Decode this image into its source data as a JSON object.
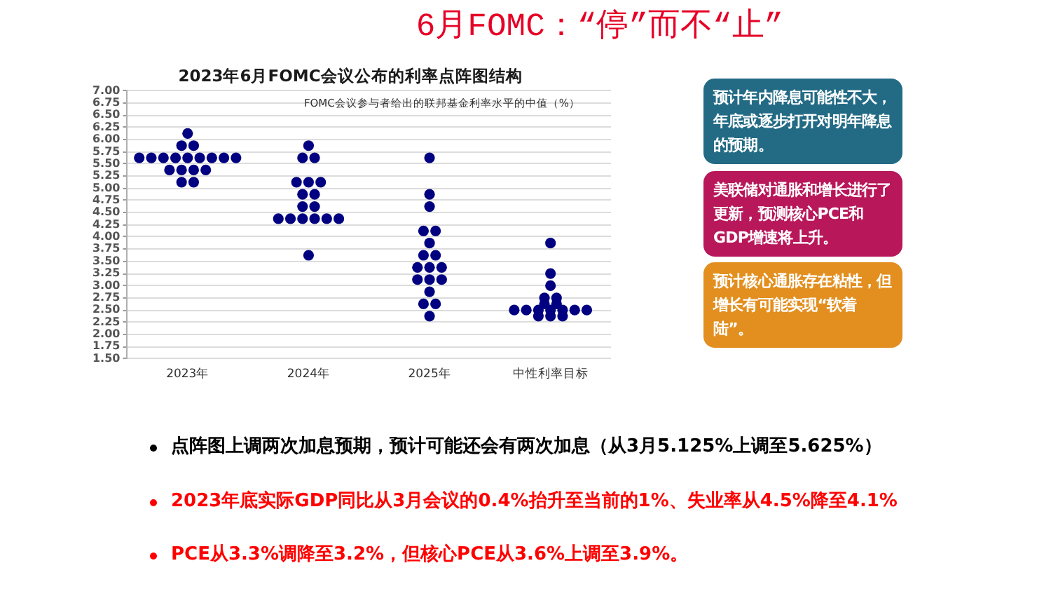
{
  "chart_data": {
    "type": "scatter",
    "title": "2023年6月FOMC会议公布的利率点阵图结构",
    "subtitle": "FOMC会议参与者给出的联邦基金利率水平的中值（%）",
    "categories": [
      "2023年",
      "2024年",
      "2025年",
      "中性利率目标"
    ],
    "series": [
      {
        "color": "#000080",
        "x": [
          "2023年",
          "2023年",
          "2023年",
          "2023年",
          "2023年",
          "2023年",
          "2023年",
          "2023年",
          "2023年",
          "2023年",
          "2023年",
          "2023年",
          "2023年",
          "2023年",
          "2023年",
          "2023年",
          "2023年",
          "2023年",
          "2024年",
          "2024年",
          "2024年",
          "2024年",
          "2024年",
          "2024年",
          "2024年",
          "2024年",
          "2024年",
          "2024年",
          "2024年",
          "2024年",
          "2024年",
          "2024年",
          "2024年",
          "2024年",
          "2024年",
          "2025年",
          "2025年",
          "2025年",
          "2025年",
          "2025年",
          "2025年",
          "2025年",
          "2025年",
          "2025年",
          "2025年",
          "2025年",
          "2025年",
          "2025年",
          "2025年",
          "2025年",
          "2025年",
          "2025年",
          "2025年",
          "中性利率目标",
          "中性利率目标",
          "中性利率目标",
          "中性利率目标",
          "中性利率目标",
          "中性利率目标",
          "中性利率目标",
          "中性利率目标",
          "中性利率目标",
          "中性利率目标",
          "中性利率目标",
          "中性利率目标",
          "中性利率目标",
          "中性利率目标",
          "中性利率目标",
          "中性利率目标",
          "中性利率目标"
        ],
        "values": [
          6.125,
          5.875,
          5.875,
          5.625,
          5.625,
          5.625,
          5.625,
          5.625,
          5.625,
          5.625,
          5.625,
          5.625,
          5.375,
          5.375,
          5.375,
          5.375,
          5.125,
          5.125,
          5.875,
          5.625,
          5.625,
          5.125,
          5.125,
          5.125,
          4.875,
          4.875,
          4.625,
          4.625,
          4.375,
          4.375,
          4.375,
          4.375,
          4.375,
          4.375,
          3.625,
          5.625,
          4.875,
          4.625,
          4.125,
          4.125,
          3.875,
          3.625,
          3.625,
          3.375,
          3.375,
          3.375,
          3.125,
          3.125,
          3.125,
          2.875,
          2.625,
          2.625,
          2.375,
          3.875,
          3.25,
          3,
          2.75,
          2.75,
          2.625,
          2.625,
          2.5,
          2.5,
          2.5,
          2.5,
          2.5,
          2.5,
          2.5,
          2.375,
          2.375,
          2.375
        ]
      }
    ],
    "ylim": [
      1.5,
      7
    ],
    "yticks": [
      {
        "value": 1.5,
        "label": "1.50"
      },
      1.75,
      {
        "value": 2,
        "label": "2.00"
      },
      2.25,
      {
        "value": 2.5,
        "label": "2.50"
      },
      2.75,
      {
        "value": 3,
        "label": "3.00"
      },
      3.25,
      {
        "value": 3.5,
        "label": "3.50"
      },
      3.75,
      {
        "value": 4,
        "label": "4.00"
      },
      4.25,
      {
        "value": 4.5,
        "label": "4.50"
      },
      4.75,
      {
        "value": 5,
        "label": "5.00"
      },
      5.25,
      {
        "value": 5.5,
        "label": "5.50"
      },
      5.75,
      {
        "value": 6,
        "label": "6.00"
      },
      6.25,
      {
        "value": 6.5,
        "label": "6.50"
      },
      6.75,
      {
        "value": 7,
        "label": "7.00"
      }
    ],
    "grid": "y",
    "marker": "circle",
    "annotations": [
      "6月FOMC：“停”而不“止”",
      "预计年内降息可能性不大，年底或逐步打开对明年降息的预期。",
      "美联储对通胀和增长进行了更新，预测核心PCE和GDP增速将上升。",
      "预计核心通胀存在粘性，但增长有可能实现“软着陆”。",
      "点阵图上调两次加息预期，预计可能还会有两次加息（从3月5.125%上调至5.625%）",
      "2023年底实际GDP同比从3月会议的0.4%抬升至当前的1%、失业率从4.5%降至4.1%",
      "PCE从3.3%调降至3.2%，但核心PCE从3.6%上调至3.9%。"
    ]
  }
}
